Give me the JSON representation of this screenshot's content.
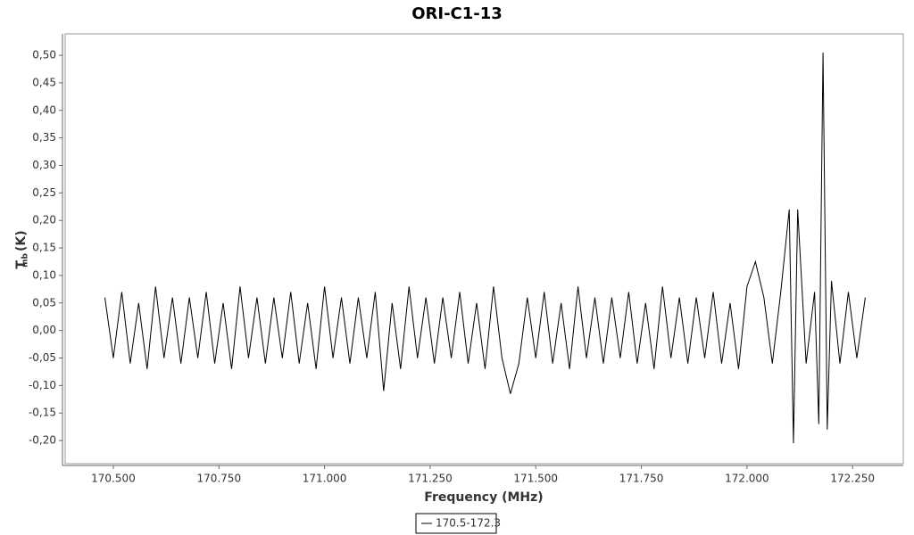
{
  "chart_data": {
    "type": "line",
    "title": "ORI-C1-13",
    "x_label": "Frequency (MHz)",
    "y_label": "T",
    "y_label_sub": "mb",
    "y_label_unit": "(K)",
    "xlim": [
      170.386,
      172.37
    ],
    "ylim": [
      -0.242,
      0.539
    ],
    "xticks": [
      {
        "value": 170.5,
        "label": "170.500"
      },
      {
        "value": 170.75,
        "label": "170.750"
      },
      {
        "value": 171.0,
        "label": "171.000"
      },
      {
        "value": 171.25,
        "label": "171.250"
      },
      {
        "value": 171.5,
        "label": "171.500"
      },
      {
        "value": 171.75,
        "label": "171.750"
      },
      {
        "value": 172.0,
        "label": "172.000"
      },
      {
        "value": 172.25,
        "label": "172.250"
      }
    ],
    "yticks": [
      {
        "value": -0.2,
        "label": "-0,20"
      },
      {
        "value": -0.15,
        "label": "-0,15"
      },
      {
        "value": -0.1,
        "label": "-0,10"
      },
      {
        "value": -0.05,
        "label": "-0,05"
      },
      {
        "value": 0,
        "label": "0,00"
      },
      {
        "value": 0.05,
        "label": "0,05"
      },
      {
        "value": 0.1,
        "label": "0,10"
      },
      {
        "value": 0.15,
        "label": "0,15"
      },
      {
        "value": 0.2,
        "label": "0,20"
      },
      {
        "value": 0.25,
        "label": "0,25"
      },
      {
        "value": 0.3,
        "label": "0,30"
      },
      {
        "value": 0.35,
        "label": "0,35"
      },
      {
        "value": 0.4,
        "label": "0,40"
      },
      {
        "value": 0.45,
        "label": "0,45"
      },
      {
        "value": 0.5,
        "label": "0,50"
      }
    ],
    "x": [
      170.48,
      170.5,
      170.52,
      170.54,
      170.56,
      170.58,
      170.6,
      170.62,
      170.64,
      170.66,
      170.68,
      170.7,
      170.72,
      170.74,
      170.76,
      170.78,
      170.8,
      170.82,
      170.84,
      170.86,
      170.88,
      170.9,
      170.92,
      170.94,
      170.96,
      170.98,
      171.0,
      171.02,
      171.04,
      171.06,
      171.08,
      171.1,
      171.12,
      171.14,
      171.16,
      171.18,
      171.2,
      171.22,
      171.24,
      171.26,
      171.28,
      171.3,
      171.32,
      171.34,
      171.36,
      171.38,
      171.4,
      171.42,
      171.44,
      171.46,
      171.48,
      171.5,
      171.52,
      171.54,
      171.56,
      171.58,
      171.6,
      171.62,
      171.64,
      171.66,
      171.68,
      171.7,
      171.72,
      171.74,
      171.76,
      171.78,
      171.8,
      171.82,
      171.84,
      171.86,
      171.88,
      171.9,
      171.92,
      171.94,
      171.96,
      171.98,
      172.0,
      172.02,
      172.04,
      172.06,
      172.08,
      172.1,
      172.11,
      172.12,
      172.14,
      172.16,
      172.17,
      172.18,
      172.19,
      172.2,
      172.22,
      172.24,
      172.26,
      172.28
    ],
    "series": [
      {
        "name": "170.5-172.3",
        "color": "#000000",
        "values": [
          0.06,
          -0.05,
          0.07,
          -0.06,
          0.05,
          -0.07,
          0.08,
          -0.05,
          0.06,
          -0.06,
          0.06,
          -0.05,
          0.07,
          -0.06,
          0.05,
          -0.07,
          0.08,
          -0.05,
          0.06,
          -0.06,
          0.06,
          -0.05,
          0.07,
          -0.06,
          0.05,
          -0.07,
          0.08,
          -0.05,
          0.06,
          -0.06,
          0.06,
          -0.05,
          0.07,
          -0.11,
          0.05,
          -0.07,
          0.08,
          -0.05,
          0.06,
          -0.06,
          0.06,
          -0.05,
          0.07,
          -0.06,
          0.05,
          -0.07,
          0.08,
          -0.05,
          -0.115,
          -0.06,
          0.06,
          -0.05,
          0.07,
          -0.06,
          0.05,
          -0.07,
          0.08,
          -0.05,
          0.06,
          -0.06,
          0.06,
          -0.05,
          0.07,
          -0.06,
          0.05,
          -0.07,
          0.08,
          -0.05,
          0.06,
          -0.06,
          0.06,
          -0.05,
          0.07,
          -0.06,
          0.05,
          -0.07,
          0.08,
          0.125,
          0.06,
          -0.06,
          0.07,
          0.22,
          -0.205,
          0.22,
          -0.06,
          0.07,
          -0.17,
          0.505,
          -0.18,
          0.09,
          -0.06,
          0.07,
          -0.05,
          0.06
        ]
      }
    ]
  }
}
